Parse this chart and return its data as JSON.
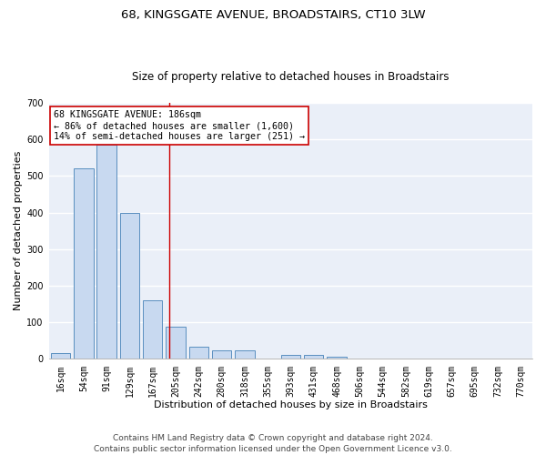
{
  "title1": "68, KINGSGATE AVENUE, BROADSTAIRS, CT10 3LW",
  "title2": "Size of property relative to detached houses in Broadstairs",
  "xlabel": "Distribution of detached houses by size in Broadstairs",
  "ylabel": "Number of detached properties",
  "bar_labels": [
    "16sqm",
    "54sqm",
    "91sqm",
    "129sqm",
    "167sqm",
    "205sqm",
    "242sqm",
    "280sqm",
    "318sqm",
    "355sqm",
    "393sqm",
    "431sqm",
    "468sqm",
    "506sqm",
    "544sqm",
    "582sqm",
    "619sqm",
    "657sqm",
    "695sqm",
    "732sqm",
    "770sqm"
  ],
  "bar_values": [
    15,
    520,
    585,
    400,
    160,
    87,
    33,
    23,
    23,
    0,
    12,
    12,
    5,
    0,
    0,
    0,
    0,
    0,
    0,
    0,
    0
  ],
  "bar_color": "#c8d9f0",
  "bar_edge_color": "#5a8fc0",
  "vline_x": 4.72,
  "vline_color": "#cc0000",
  "annotation_line1": "68 KINGSGATE AVENUE: 186sqm",
  "annotation_line2": "← 86% of detached houses are smaller (1,600)",
  "annotation_line3": "14% of semi-detached houses are larger (251) →",
  "annotation_box_color": "#ffffff",
  "annotation_box_edge": "#cc0000",
  "ylim": [
    0,
    700
  ],
  "yticks": [
    0,
    100,
    200,
    300,
    400,
    500,
    600,
    700
  ],
  "bg_color": "#eaeff8",
  "footer1": "Contains HM Land Registry data © Crown copyright and database right 2024.",
  "footer2": "Contains public sector information licensed under the Open Government Licence v3.0.",
  "title1_fontsize": 9.5,
  "title2_fontsize": 8.5,
  "xlabel_fontsize": 8,
  "ylabel_fontsize": 8,
  "tick_fontsize": 7,
  "annot_fontsize": 7.2,
  "footer_fontsize": 6.5
}
